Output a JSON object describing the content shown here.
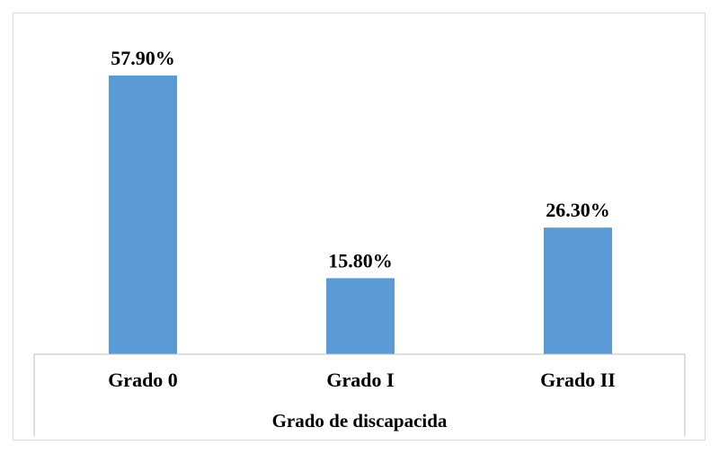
{
  "chart_data": {
    "type": "bar",
    "categories": [
      "Grado 0",
      "Grado I",
      "Grado II"
    ],
    "values": [
      57.9,
      15.8,
      26.3
    ],
    "data_labels": [
      "57.90%",
      "15.80%",
      "26.30%"
    ],
    "title": "",
    "xlabel": "Grado de discapacida",
    "ylabel": "",
    "ylim": [
      0,
      60
    ],
    "grid": false,
    "legend": "none",
    "bar_color": "#5b9bd5"
  }
}
